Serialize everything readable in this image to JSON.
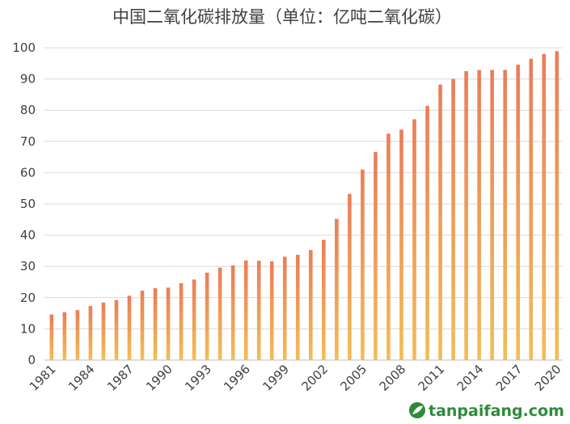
{
  "chart_data": {
    "type": "bar",
    "title": "中国二氧化碳排放量（单位：亿吨二氧化碳）",
    "xlabel": "",
    "ylabel": "",
    "ylim": [
      0,
      100
    ],
    "yticks": [
      0,
      10,
      20,
      30,
      40,
      50,
      60,
      70,
      80,
      90,
      100
    ],
    "categories": [
      "1981",
      "1982",
      "1983",
      "1984",
      "1985",
      "1986",
      "1987",
      "1988",
      "1989",
      "1990",
      "1991",
      "1992",
      "1993",
      "1994",
      "1995",
      "1996",
      "1997",
      "1998",
      "1999",
      "2000",
      "2001",
      "2002",
      "2003",
      "2004",
      "2005",
      "2006",
      "2007",
      "2008",
      "2009",
      "2010",
      "2011",
      "2012",
      "2013",
      "2014",
      "2015",
      "2016",
      "2017",
      "2018",
      "2019",
      "2020"
    ],
    "tick_labels": [
      "1981",
      "1984",
      "1987",
      "1990",
      "1993",
      "1996",
      "1999",
      "2002",
      "2005",
      "2008",
      "2011",
      "2014",
      "2017",
      "2020"
    ],
    "values": [
      14.6,
      15.3,
      16.0,
      17.3,
      18.4,
      19.2,
      20.6,
      22.2,
      23.0,
      23.2,
      24.6,
      25.8,
      28.0,
      29.6,
      30.3,
      31.9,
      31.8,
      31.6,
      33.1,
      33.7,
      35.2,
      38.5,
      45.2,
      53.2,
      61.0,
      66.6,
      72.5,
      73.8,
      77.1,
      81.4,
      88.2,
      90.0,
      92.5,
      92.9,
      92.9,
      92.9,
      94.6,
      96.5,
      98.0,
      98.9
    ],
    "grid": true,
    "legend": "none",
    "bar_colors": {
      "top": "#ec7c58",
      "bottom": "#f3bd55"
    }
  },
  "watermark": {
    "text": "tanpaifang.com",
    "icon": "leaf-logo-icon",
    "color": "#2e8b3a"
  }
}
